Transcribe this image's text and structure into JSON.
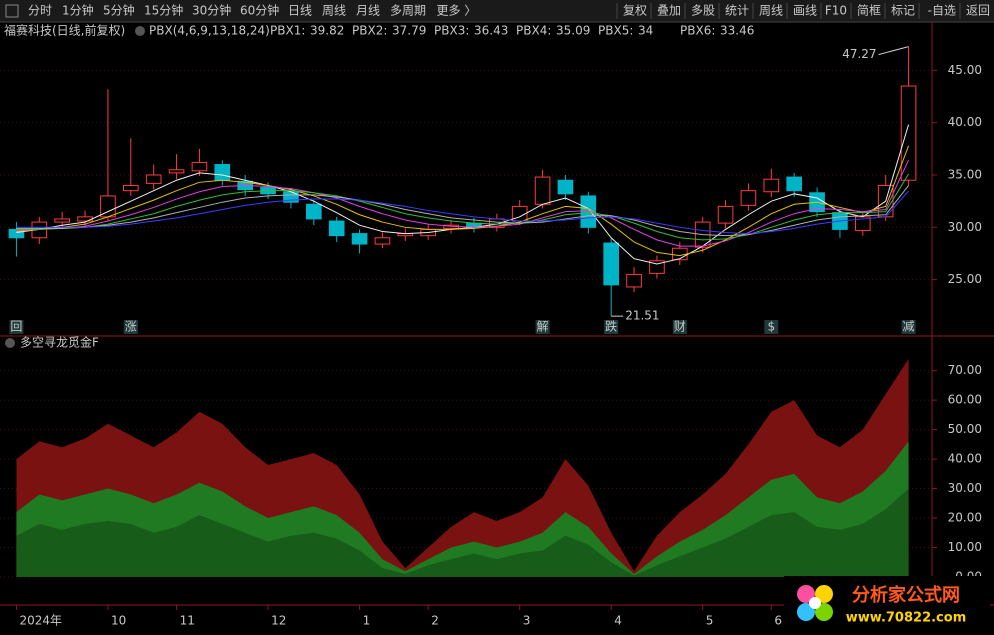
{
  "toolbar": {
    "left": [
      "分时",
      "1分钟",
      "5分钟",
      "15分钟",
      "30分钟",
      "60分钟",
      "日线",
      "周线",
      "月线",
      "多周期",
      "更多 〉"
    ],
    "active": "日线",
    "right": [
      "复权",
      "叠加",
      "多股",
      "统计",
      "周线",
      "画线",
      "F10",
      "简框",
      "标记",
      "-自选",
      "返回"
    ]
  },
  "chart_data": [
    {
      "type": "candlestick",
      "title": "福赛科技(日线,前复权)",
      "indicator": "PBX(4,6,9,13,18,24)",
      "up_color": "#ff3b3b",
      "down_color": "#00b4c8",
      "open": [
        29.8,
        29.0,
        30.5,
        30.6,
        31.0,
        33.5,
        34.2,
        35.2,
        35.4,
        36.0,
        34.4,
        33.8,
        33.4,
        32.2,
        30.6,
        29.4,
        28.4,
        29.2,
        29.2,
        29.9,
        30.4,
        30.0,
        30.6,
        32.2,
        34.5,
        33.0,
        28.5,
        24.3,
        25.6,
        26.9,
        28.1,
        30.4,
        32.1,
        33.4,
        34.8,
        33.3,
        31.4,
        29.7,
        31.0,
        34.5
      ],
      "high": [
        30.5,
        31.0,
        31.5,
        31.6,
        43.2,
        38.5,
        36.0,
        37.0,
        37.5,
        36.4,
        35.0,
        34.3,
        33.8,
        32.6,
        31.0,
        29.8,
        29.5,
        29.9,
        30.3,
        30.7,
        30.9,
        31.3,
        32.6,
        35.5,
        35.0,
        33.4,
        28.9,
        26.2,
        27.3,
        28.6,
        31.0,
        32.6,
        34.2,
        35.6,
        35.2,
        33.8,
        31.8,
        31.5,
        35.0,
        47.27
      ],
      "low": [
        27.2,
        28.4,
        30.0,
        30.1,
        30.6,
        33.0,
        33.6,
        34.6,
        34.9,
        34.0,
        33.0,
        32.7,
        31.8,
        30.2,
        28.6,
        27.5,
        28.0,
        28.7,
        28.8,
        29.4,
        29.5,
        29.6,
        30.2,
        31.8,
        32.6,
        29.4,
        21.51,
        23.8,
        25.1,
        26.4,
        27.6,
        29.9,
        31.6,
        32.9,
        32.9,
        31.0,
        29.0,
        29.2,
        30.6,
        34.0
      ],
      "close": [
        29.0,
        30.5,
        30.8,
        31.0,
        33.0,
        34.0,
        35.0,
        35.5,
        36.2,
        34.5,
        33.6,
        33.2,
        32.4,
        30.8,
        29.2,
        28.4,
        29.0,
        29.4,
        29.8,
        30.2,
        30.0,
        30.8,
        32.0,
        34.8,
        33.2,
        30.0,
        24.5,
        25.5,
        26.8,
        28.0,
        30.5,
        32.0,
        33.5,
        34.6,
        33.5,
        31.5,
        29.8,
        31.0,
        34.0,
        43.5
      ],
      "events": [
        "回",
        null,
        null,
        null,
        null,
        "涨",
        null,
        null,
        null,
        null,
        null,
        null,
        null,
        null,
        null,
        null,
        null,
        null,
        null,
        null,
        null,
        null,
        null,
        "解",
        null,
        null,
        "跌",
        null,
        null,
        "财",
        null,
        null,
        null,
        "$",
        null,
        null,
        null,
        null,
        null,
        "减"
      ],
      "series": [
        {
          "name": "PBX1:",
          "color": "#f0f0f0",
          "values": [
            29.5,
            29.8,
            30.2,
            30.5,
            31.5,
            32.5,
            33.5,
            34.5,
            35.2,
            35.0,
            34.5,
            34.0,
            33.4,
            32.5,
            31.4,
            30.2,
            29.6,
            29.4,
            29.5,
            29.8,
            30.0,
            30.3,
            31.0,
            32.2,
            32.8,
            31.8,
            29.0,
            27.0,
            26.5,
            27.0,
            28.2,
            29.8,
            31.2,
            32.5,
            33.2,
            32.8,
            31.5,
            31.0,
            32.5,
            39.82
          ]
        },
        {
          "name": "PBX2:",
          "color": "#e6c000",
          "values": [
            29.6,
            29.8,
            30.0,
            30.3,
            31.0,
            31.8,
            32.6,
            33.5,
            34.3,
            34.5,
            34.3,
            34.0,
            33.6,
            33.0,
            32.2,
            31.2,
            30.5,
            30.0,
            29.8,
            29.8,
            29.9,
            30.1,
            30.5,
            31.3,
            32.0,
            31.8,
            30.3,
            28.6,
            27.6,
            27.3,
            27.8,
            28.8,
            30.0,
            31.3,
            32.2,
            32.4,
            31.9,
            31.4,
            32.0,
            37.79
          ]
        },
        {
          "name": "PBX3:",
          "color": "#e040e0",
          "values": [
            29.7,
            29.8,
            29.9,
            30.1,
            30.6,
            31.2,
            31.9,
            32.7,
            33.4,
            33.9,
            34.0,
            33.9,
            33.7,
            33.3,
            32.8,
            32.0,
            31.3,
            30.7,
            30.3,
            30.1,
            30.0,
            30.1,
            30.3,
            30.9,
            31.5,
            31.6,
            30.9,
            29.8,
            28.8,
            28.2,
            28.2,
            28.7,
            29.5,
            30.5,
            31.3,
            31.8,
            31.7,
            31.5,
            31.7,
            36.43
          ]
        },
        {
          "name": "PBX4:",
          "color": "#30c030",
          "values": [
            29.8,
            29.8,
            29.9,
            30.0,
            30.3,
            30.8,
            31.3,
            32.0,
            32.6,
            33.1,
            33.4,
            33.5,
            33.5,
            33.3,
            33.0,
            32.5,
            31.9,
            31.3,
            30.9,
            30.6,
            30.4,
            30.3,
            30.4,
            30.7,
            31.2,
            31.4,
            31.1,
            30.4,
            29.6,
            29.0,
            28.8,
            28.9,
            29.3,
            30.0,
            30.7,
            31.2,
            31.4,
            31.4,
            31.5,
            35.09
          ]
        },
        {
          "name": "PBX5:",
          "color": "#b0b0b0",
          "values": [
            29.9,
            29.9,
            29.9,
            30.0,
            30.2,
            30.5,
            30.9,
            31.4,
            31.9,
            32.4,
            32.8,
            33.0,
            33.1,
            33.1,
            32.9,
            32.6,
            32.2,
            31.7,
            31.3,
            30.9,
            30.7,
            30.5,
            30.4,
            30.5,
            30.8,
            31.1,
            31.1,
            30.7,
            30.1,
            29.6,
            29.3,
            29.2,
            29.3,
            29.7,
            30.2,
            30.7,
            31.0,
            31.1,
            31.2,
            34.0
          ]
        },
        {
          "name": "PBX6:",
          "color": "#3c3cff",
          "values": [
            30.0,
            30.0,
            30.0,
            30.0,
            30.1,
            30.3,
            30.6,
            30.9,
            31.3,
            31.7,
            32.1,
            32.4,
            32.6,
            32.7,
            32.7,
            32.6,
            32.3,
            32.0,
            31.6,
            31.3,
            31.0,
            30.8,
            30.6,
            30.6,
            30.7,
            30.9,
            31.0,
            30.8,
            30.4,
            30.0,
            29.7,
            29.5,
            29.4,
            29.6,
            29.9,
            30.3,
            30.6,
            30.8,
            31.0,
            33.46
          ]
        }
      ],
      "ylim": [
        19.9,
        47.9
      ],
      "yticks": [
        {
          "value": 25,
          "label": "25.00"
        },
        {
          "value": 30,
          "label": "30.00"
        },
        {
          "value": 35,
          "label": "35.00"
        },
        {
          "value": 40,
          "label": "40.00"
        },
        {
          "value": 45,
          "label": "45.00"
        }
      ],
      "grid": true
    },
    {
      "type": "area",
      "title": "多空寻龙觅金F",
      "categories": [
        "2024年",
        null,
        null,
        null,
        "10",
        null,
        null,
        "11",
        null,
        null,
        null,
        "12",
        null,
        null,
        null,
        "1",
        null,
        null,
        "2",
        null,
        null,
        null,
        "3",
        null,
        null,
        null,
        "4",
        null,
        null,
        null,
        "5",
        null,
        null,
        "6",
        null,
        null,
        null,
        null,
        null,
        null
      ],
      "series": [
        {
          "color": "#7a1212",
          "values": [
            40,
            46,
            44,
            47,
            52,
            48,
            44,
            49,
            56,
            52,
            44,
            38,
            40,
            42,
            38,
            28,
            12,
            3,
            10,
            17,
            22,
            19,
            22,
            27,
            40,
            31,
            15,
            2,
            14,
            22,
            28,
            35,
            45,
            56,
            60,
            48,
            44,
            50,
            62,
            74
          ]
        },
        {
          "color": "#1f7a22",
          "values": [
            22,
            28,
            26,
            28,
            30,
            28,
            25,
            28,
            32,
            29,
            24,
            20,
            22,
            24,
            21,
            15,
            6,
            2,
            6,
            10,
            12,
            10,
            12,
            15,
            22,
            17,
            8,
            1,
            7,
            12,
            16,
            21,
            27,
            33,
            35,
            27,
            25,
            29,
            36,
            46
          ]
        },
        {
          "color": "#175c19",
          "values": [
            14,
            18,
            16,
            18,
            19,
            18,
            15,
            17,
            21,
            18,
            15,
            12,
            14,
            15,
            13,
            9,
            3,
            1,
            4,
            6,
            8,
            6,
            8,
            9,
            14,
            11,
            5,
            0.5,
            4,
            7,
            10,
            13,
            17,
            21,
            22,
            17,
            16,
            18,
            23,
            30
          ]
        }
      ],
      "ylim": [
        -9.5,
        77
      ],
      "yticks": [
        {
          "value": 0,
          "label": "0.00"
        },
        {
          "value": 10,
          "label": "10.00"
        },
        {
          "value": 20,
          "label": "20.00"
        },
        {
          "value": 30,
          "label": "30.00"
        },
        {
          "value": 40,
          "label": "40.00"
        },
        {
          "value": 50,
          "label": "50.00"
        },
        {
          "value": 60,
          "label": "60.00"
        },
        {
          "value": 70,
          "label": "70.00"
        }
      ],
      "grid": true
    }
  ],
  "watermark": {
    "name": "分析家公式网",
    "url": "www.70822.com"
  }
}
